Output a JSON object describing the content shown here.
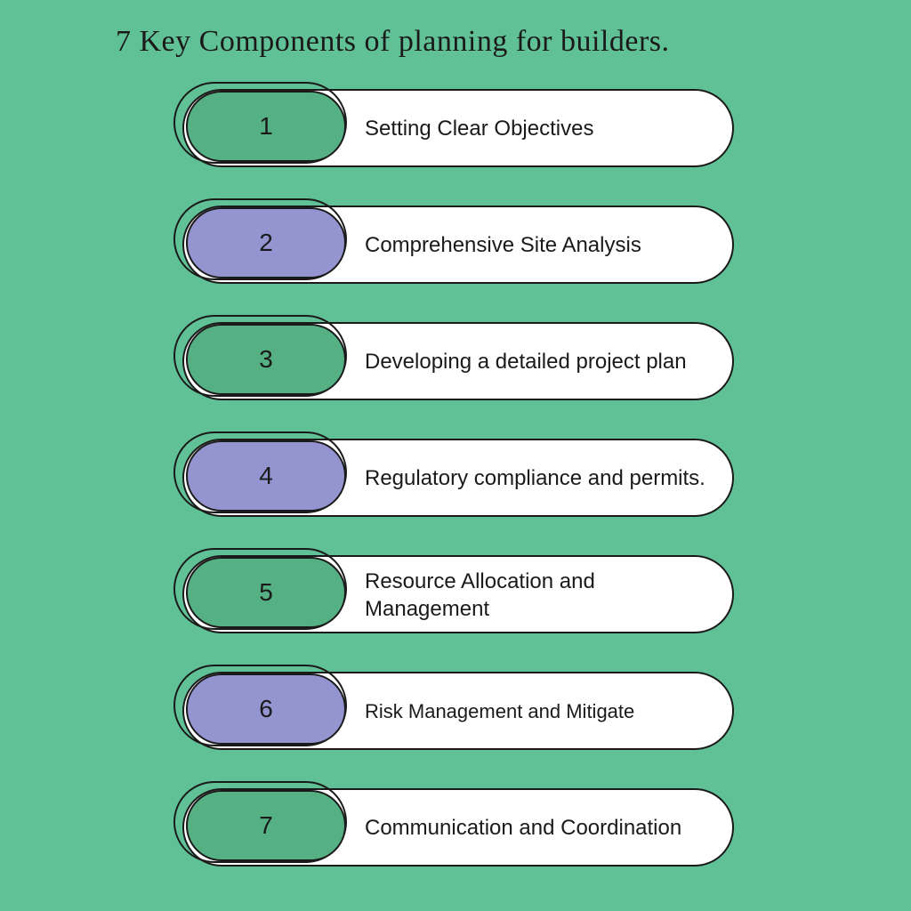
{
  "title": "7 Key Components of planning for builders.",
  "background_color": "#61c196",
  "colors": {
    "green_pill": "#55b184",
    "purple_pill": "#9494d1",
    "white": "#ffffff",
    "border": "#1a1a1a",
    "text": "#1a1a1a"
  },
  "typography": {
    "title_fontsize": 34,
    "title_family": "serif",
    "number_fontsize": 28,
    "item_text_fontsize": 24,
    "item_text_fontsize_small": 22
  },
  "layout": {
    "item_height": 98,
    "item_gap": 33,
    "pill_border_radius": 50,
    "number_pill_width": 180,
    "main_pill_width": 620
  },
  "items": [
    {
      "number": "1",
      "label": "Setting Clear Objectives",
      "pill_color": "#55b184",
      "small": false
    },
    {
      "number": "2",
      "label": "Comprehensive Site Analysis",
      "pill_color": "#9494d1",
      "small": false
    },
    {
      "number": "3",
      "label": "Developing a detailed project plan",
      "pill_color": "#55b184",
      "small": false
    },
    {
      "number": "4",
      "label": "Regulatory compliance and permits.",
      "pill_color": "#9494d1",
      "small": false
    },
    {
      "number": "5",
      "label": "Resource Allocation and Management",
      "pill_color": "#55b184",
      "small": false
    },
    {
      "number": "6",
      "label": "Risk Management and Mitigate",
      "pill_color": "#9494d1",
      "small": true
    },
    {
      "number": "7",
      "label": "Communication and Coordination",
      "pill_color": "#55b184",
      "small": false
    }
  ]
}
